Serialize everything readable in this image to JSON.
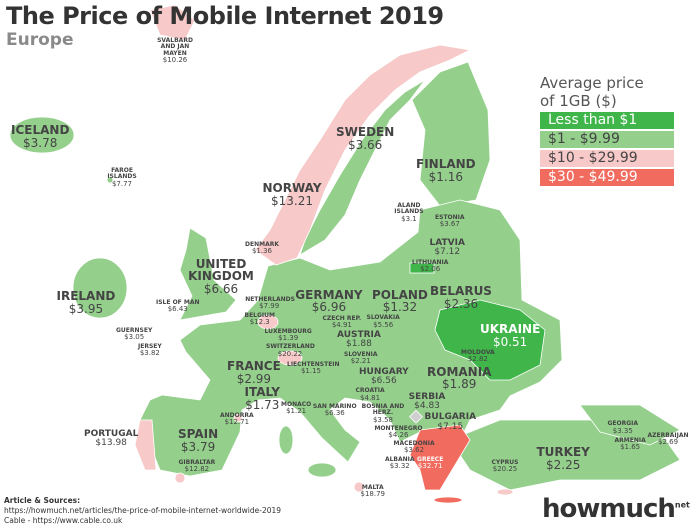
{
  "header": {
    "title": "The Price of Mobile Internet 2019",
    "subtitle": "Europe"
  },
  "legend": {
    "title_line1": "Average price",
    "title_line2": "of 1GB ($)",
    "items": [
      {
        "label": "Less than $1",
        "color": "#3fb54a",
        "text_color": "#ffffff"
      },
      {
        "label": "$1 - $9.99",
        "color": "#94d08c",
        "text_color": "#444444"
      },
      {
        "label": "$10 - $29.99",
        "color": "#f7c9c9",
        "text_color": "#444444"
      },
      {
        "label": "$30 - $49.99",
        "color": "#f26b5f",
        "text_color": "#ffffff"
      }
    ]
  },
  "countries": [
    {
      "name": "SVALBARD AND JAN MAYEN",
      "price": "$10.26",
      "tier": 2
    },
    {
      "name": "ICELAND",
      "price": "$3.78",
      "tier": 1
    },
    {
      "name": "FAROE ISLANDS",
      "price": "$7.77",
      "tier": 1
    },
    {
      "name": "NORWAY",
      "price": "$13.21",
      "tier": 2
    },
    {
      "name": "SWEDEN",
      "price": "$3.66",
      "tier": 1
    },
    {
      "name": "FINLAND",
      "price": "$1.16",
      "tier": 1
    },
    {
      "name": "ALAND ISLANDS",
      "price": "$3.1",
      "tier": 1
    },
    {
      "name": "ESTONIA",
      "price": "$3.67",
      "tier": 1
    },
    {
      "name": "LATVIA",
      "price": "$7.12",
      "tier": 1
    },
    {
      "name": "LITHUANIA",
      "price": "$2.06",
      "tier": 1
    },
    {
      "name": "DENMARK",
      "price": "$1.36",
      "tier": 1
    },
    {
      "name": "IRELAND",
      "price": "$3.95",
      "tier": 1
    },
    {
      "name": "ISLE OF MAN",
      "price": "$6.43",
      "tier": 1
    },
    {
      "name": "UNITED KINGDOM",
      "price": "$6.66",
      "tier": 1
    },
    {
      "name": "NETHERLANDS",
      "price": "$7.99",
      "tier": 1
    },
    {
      "name": "BELGIUM",
      "price": "$12.3",
      "tier": 2
    },
    {
      "name": "LUXEMBOURG",
      "price": "$1.39",
      "tier": 1
    },
    {
      "name": "GERMANY",
      "price": "$6.96",
      "tier": 1
    },
    {
      "name": "POLAND",
      "price": "$1.32",
      "tier": 1
    },
    {
      "name": "BELARUS",
      "price": "$2.36",
      "tier": 1
    },
    {
      "name": "UKRAINE",
      "price": "$0.51",
      "tier": 0
    },
    {
      "name": "CZECH REP.",
      "price": "$4.91",
      "tier": 1
    },
    {
      "name": "SLOVAKIA",
      "price": "$5.56",
      "tier": 1
    },
    {
      "name": "AUSTRIA",
      "price": "$1.88",
      "tier": 1
    },
    {
      "name": "LIECHTENSTEIN",
      "price": "$1.15",
      "tier": 1
    },
    {
      "name": "SWITZERLAND",
      "price": "$20.22",
      "tier": 2
    },
    {
      "name": "FRANCE",
      "price": "$2.99",
      "tier": 1
    },
    {
      "name": "GUERNSEY",
      "price": "$3.05",
      "tier": 1
    },
    {
      "name": "JERSEY",
      "price": "$3.82",
      "tier": 1
    },
    {
      "name": "HUNGARY",
      "price": "$6.56",
      "tier": 1
    },
    {
      "name": "SLOVENIA",
      "price": "$2.21",
      "tier": 1
    },
    {
      "name": "CROATIA",
      "price": "$4.81",
      "tier": 1
    },
    {
      "name": "BOSNIA AND HERZ.",
      "price": "$3.58",
      "tier": 1
    },
    {
      "name": "SERBIA",
      "price": "$4.83",
      "tier": 1
    },
    {
      "name": "ROMANIA",
      "price": "$1.89",
      "tier": 1
    },
    {
      "name": "MOLDOVA",
      "price": "$2.82",
      "tier": 1
    },
    {
      "name": "BULGARIA",
      "price": "$7.15",
      "tier": 1
    },
    {
      "name": "MONTENEGRO",
      "price": "$4.26",
      "tier": 1
    },
    {
      "name": "MACEDONIA",
      "price": "$3.62",
      "tier": 1
    },
    {
      "name": "ALBANIA",
      "price": "$3.32",
      "tier": 1
    },
    {
      "name": "GREECE",
      "price": "$32.71",
      "tier": 3
    },
    {
      "name": "ITALY",
      "price": "$1.73",
      "tier": 1
    },
    {
      "name": "SAN MARINO",
      "price": "$6.36",
      "tier": 1
    },
    {
      "name": "MONACO",
      "price": "$1.21",
      "tier": 1
    },
    {
      "name": "ANDORRA",
      "price": "$12.71",
      "tier": 2
    },
    {
      "name": "SPAIN",
      "price": "$3.79",
      "tier": 1
    },
    {
      "name": "PORTUGAL",
      "price": "$13.98",
      "tier": 2
    },
    {
      "name": "GIBRALTAR",
      "price": "$12.82",
      "tier": 2
    },
    {
      "name": "MALTA",
      "price": "$18.79",
      "tier": 2
    },
    {
      "name": "CYPRUS",
      "price": "$20.25",
      "tier": 2
    },
    {
      "name": "TURKEY",
      "price": "$2.25",
      "tier": 1
    },
    {
      "name": "GEORGIA",
      "price": "$3.35",
      "tier": 1
    },
    {
      "name": "ARMENIA",
      "price": "$1.65",
      "tier": 1
    },
    {
      "name": "AZERBAIJAN",
      "price": "$2.69",
      "tier": 1
    }
  ],
  "sources": {
    "heading": "Article & Sources:",
    "line1": "https://howmuch.net/articles/the-price-of-mobile-internet-worldwide-2019",
    "line2": "Cable - https://www.cable.co.uk"
  },
  "logo": {
    "text": "howmuch",
    "suffix": "net"
  }
}
